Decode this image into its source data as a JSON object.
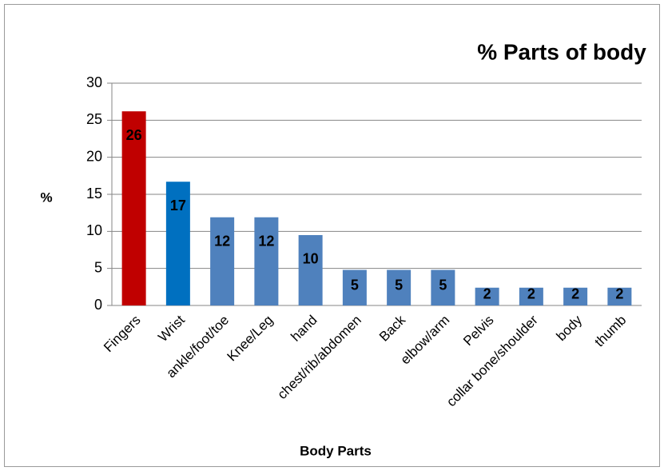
{
  "chart_data": {
    "type": "bar",
    "title": "% Parts of body",
    "y_label": "%",
    "x_label": "Body Parts",
    "categories": [
      "Fingers",
      "Wrist",
      "ankle/foot/toe",
      "Knee/Leg",
      "hand",
      "chest/rib/abdomen",
      "Back",
      "elbow/arm",
      "Pelvis",
      "collar bone/shoulder",
      "body",
      "thumb"
    ],
    "values": [
      26.2,
      16.7,
      11.9,
      11.9,
      9.5,
      4.8,
      4.8,
      4.8,
      2.4,
      2.4,
      2.4,
      2.4
    ],
    "value_labels": [
      "26",
      "17",
      "12",
      "12",
      "10",
      "5",
      "5",
      "5",
      "2",
      "2",
      "2",
      "2"
    ],
    "colors": [
      "#c00000",
      "#0070c0",
      "#4f81bd",
      "#4f81bd",
      "#4f81bd",
      "#4f81bd",
      "#4f81bd",
      "#4f81bd",
      "#4f81bd",
      "#4f81bd",
      "#4f81bd",
      "#4f81bd"
    ],
    "ylim": [
      0,
      30
    ],
    "yticks": [
      0,
      5,
      10,
      15,
      20,
      25,
      30
    ],
    "grid": true
  }
}
